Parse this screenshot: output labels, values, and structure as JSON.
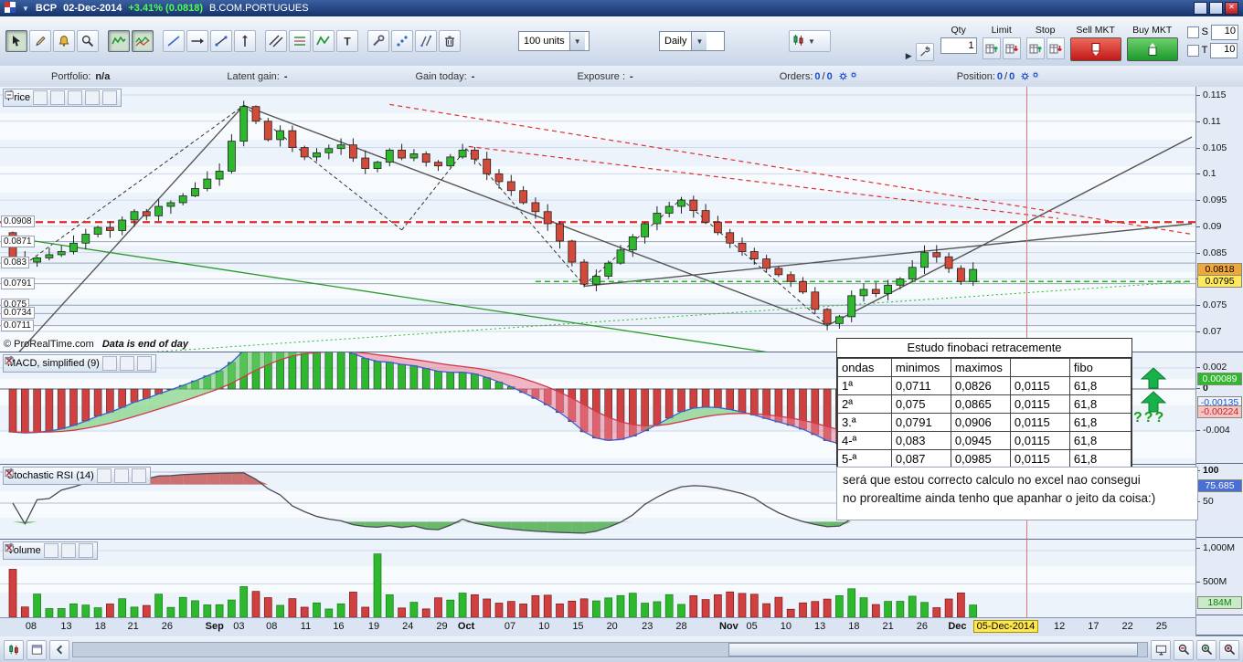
{
  "titlebar": {
    "symbol": "BCP",
    "date": "02-Dec-2014",
    "change": "+3.41% (0.0818)",
    "instrument": "B.COM.PORTUGUES"
  },
  "toolbar": {
    "tools": [
      {
        "name": "pointer-tool",
        "icon": "pointer",
        "selected": true
      },
      {
        "name": "pencil-tool",
        "icon": "pencil",
        "selected": false
      },
      {
        "name": "alarm-tool",
        "icon": "bell",
        "selected": false
      },
      {
        "name": "zoom-tool",
        "icon": "magnifier",
        "selected": false
      },
      {
        "name": "chart-mode-line",
        "icon": "wave",
        "selected": true
      },
      {
        "name": "chart-mode-compare",
        "icon": "wave2",
        "selected": true
      },
      {
        "name": "trend-line-tool",
        "icon": "diagline",
        "selected": false
      },
      {
        "name": "horizontal-ray-tool",
        "icon": "hline",
        "selected": false
      },
      {
        "name": "segment-tool",
        "icon": "segment",
        "selected": false
      },
      {
        "name": "vertical-line-tool",
        "icon": "vline",
        "selected": false
      },
      {
        "name": "channel-tool",
        "icon": "channel",
        "selected": false
      },
      {
        "name": "fibonacci-tool",
        "icon": "fib",
        "selected": false
      },
      {
        "name": "zigzag-tool",
        "icon": "zigzag",
        "selected": false
      },
      {
        "name": "text-tool",
        "icon": "textT",
        "selected": false
      },
      {
        "name": "drawing-settings-tool",
        "icon": "tools",
        "selected": false
      },
      {
        "name": "link-points-tool",
        "icon": "dots",
        "selected": false
      },
      {
        "name": "parallel-lines-tool",
        "icon": "slashes",
        "selected": false
      },
      {
        "name": "delete-drawing-tool",
        "icon": "trash",
        "selected": false
      }
    ],
    "units_value": "100 units",
    "timeframe_value": "Daily",
    "trade": {
      "qty_label": "Qty",
      "qty_value": "1",
      "limit_label": "Limit",
      "stop_label": "Stop",
      "sell_label": "Sell MKT",
      "buy_label": "Buy MKT",
      "s_label": "S",
      "s_value": "10",
      "t_label": "T",
      "t_value": "10"
    }
  },
  "infobar": {
    "portfolio_label": "Portfolio:",
    "portfolio_value": "n/a",
    "latent_label": "Latent gain:",
    "latent_value": "-",
    "gain_label": "Gain today:",
    "gain_value": "-",
    "exposure_label": "Exposure :",
    "exposure_value": "-",
    "orders_label": "Orders:",
    "orders_a": "0",
    "orders_sep": "/",
    "orders_b": "0",
    "position_label": "Position:",
    "position_a": "0",
    "position_sep": "/",
    "position_b": "0"
  },
  "panels": {
    "price": {
      "title": "Price",
      "copyright": "© ProRealTime.com",
      "note": "Data is end of day",
      "left_levels": [
        "0.0908",
        "0.0871",
        "0.083",
        "0.0791",
        "0.075",
        "0.0734",
        "0.0711"
      ],
      "right_ticks": [
        "0.115",
        "0.11",
        "0.105",
        "0.1",
        "0.095",
        "0.09",
        "0.085",
        "0.08",
        "0.075",
        "0.07"
      ],
      "badges": [
        {
          "label": "0.0818",
          "value": 0.0818,
          "bg": "#f0a73c",
          "fg": "#000"
        },
        {
          "label": "0.0795",
          "value": 0.0795,
          "bg": "#ffe95c",
          "fg": "#000"
        }
      ]
    },
    "macd": {
      "title": "MACD, simplified (9)",
      "ticks": [
        {
          "label": "0.002",
          "value": 0.002,
          "bold": false
        },
        {
          "label": "0",
          "value": 0,
          "bold": true
        },
        {
          "label": "-0.004",
          "value": -0.004,
          "bold": false
        }
      ],
      "badges": [
        {
          "label": "0.00089",
          "value": 0.00089,
          "bg": "#2eb82e",
          "fg": "#fff"
        },
        {
          "label": "-0.00135",
          "value": -0.00135,
          "bg": "#eef4ff",
          "fg": "#2255cc"
        },
        {
          "label": "-0.00224",
          "value": -0.00224,
          "bg": "#f6c4c4",
          "fg": "#c22222"
        }
      ]
    },
    "stoch": {
      "title": "Stochastic RSI (14)",
      "ticks": [
        {
          "label": "100",
          "value": 100,
          "bold": true
        },
        {
          "label": "50",
          "value": 50,
          "bold": false
        }
      ],
      "badges": [
        {
          "label": "75.685",
          "value": 75.685,
          "bg": "#4a6fd4",
          "fg": "#fff"
        }
      ]
    },
    "volume": {
      "title": "Volume",
      "ticks": [
        {
          "label": "1,000M",
          "value": 1000,
          "bold": false
        },
        {
          "label": "500M",
          "value": 500,
          "bold": false
        }
      ],
      "badges": [
        {
          "label": "184M",
          "value": 184,
          "bg": "#c6ebc6",
          "fg": "#157a15"
        }
      ]
    }
  },
  "fib_table": {
    "title": "Estudo finobaci retracemente",
    "headers": [
      "ondas",
      "minimos",
      "maximos",
      "",
      "fibo"
    ],
    "rows": [
      [
        "1ª",
        "0,0711",
        "0,0826",
        "0,0115",
        "61,8"
      ],
      [
        "2ª",
        "0,075",
        "0,0865",
        "0,0115",
        "61,8"
      ],
      [
        "3.ª",
        "0,0791",
        "0,0906",
        "0,0115",
        "61,8"
      ],
      [
        "4-ª",
        "0,083",
        "0,0945",
        "0,0115",
        "61,8"
      ],
      [
        "5-ª",
        "0,087",
        "0,0985",
        "0,0115",
        "61,8"
      ]
    ]
  },
  "annotation": {
    "line1": "será que estou correcto calculo no excel nao consegui",
    "line2": "no prorealtime ainda tenho que apanhar o jeito da coisa:)",
    "question": "???"
  },
  "xaxis": {
    "labels": [
      {
        "t": "08",
        "i": 1.5,
        "month": false
      },
      {
        "t": "13",
        "i": 4.4,
        "month": false
      },
      {
        "t": "18",
        "i": 7.2,
        "month": false
      },
      {
        "t": "21",
        "i": 9.9,
        "month": false
      },
      {
        "t": "26",
        "i": 12.7,
        "month": false
      },
      {
        "t": "Sep",
        "i": 16.6,
        "month": true
      },
      {
        "t": "03",
        "i": 18.6,
        "month": false
      },
      {
        "t": "08",
        "i": 21.3,
        "month": false
      },
      {
        "t": "11",
        "i": 24.1,
        "month": false
      },
      {
        "t": "16",
        "i": 26.8,
        "month": false
      },
      {
        "t": "19",
        "i": 29.7,
        "month": false
      },
      {
        "t": "24",
        "i": 32.5,
        "month": false
      },
      {
        "t": "29",
        "i": 35.3,
        "month": false
      },
      {
        "t": "Oct",
        "i": 37.3,
        "month": true
      },
      {
        "t": "07",
        "i": 40.9,
        "month": false
      },
      {
        "t": "10",
        "i": 43.7,
        "month": false
      },
      {
        "t": "15",
        "i": 46.5,
        "month": false
      },
      {
        "t": "20",
        "i": 49.3,
        "month": false
      },
      {
        "t": "23",
        "i": 52.2,
        "month": false
      },
      {
        "t": "28",
        "i": 55.0,
        "month": false
      },
      {
        "t": "Nov",
        "i": 58.9,
        "month": true
      },
      {
        "t": "05",
        "i": 60.8,
        "month": false
      },
      {
        "t": "10",
        "i": 63.6,
        "month": false
      },
      {
        "t": "13",
        "i": 66.4,
        "month": false
      },
      {
        "t": "18",
        "i": 69.2,
        "month": false
      },
      {
        "t": "21",
        "i": 72.0,
        "month": false
      },
      {
        "t": "26",
        "i": 74.8,
        "month": false
      },
      {
        "t": "Dec",
        "i": 77.7,
        "month": true
      },
      {
        "t": "12",
        "i": 86.1,
        "month": false
      },
      {
        "t": "17",
        "i": 88.9,
        "month": false
      },
      {
        "t": "22",
        "i": 91.7,
        "month": false
      },
      {
        "t": "25",
        "i": 94.5,
        "month": false
      }
    ],
    "cursor_date": "05-Dec-2014",
    "cursor_i": 81.7
  },
  "chart_data": {
    "type": "candlestick",
    "symbol": "BCP",
    "timeframe": "Daily",
    "ylim": [
      0.0662,
      0.115
    ],
    "y_ticks": [
      0.115,
      0.11,
      0.105,
      0.1,
      0.095,
      0.09,
      0.085,
      0.08,
      0.075,
      0.07
    ],
    "open_first": 0.0888,
    "closes": [
      0.0838,
      0.0832,
      0.084,
      0.0846,
      0.0852,
      0.0868,
      0.0885,
      0.0898,
      0.0892,
      0.0912,
      0.0928,
      0.092,
      0.0938,
      0.0945,
      0.0958,
      0.0972,
      0.099,
      0.1005,
      0.1062,
      0.1128,
      0.11,
      0.1065,
      0.1082,
      0.105,
      0.1032,
      0.104,
      0.1048,
      0.1055,
      0.103,
      0.101,
      0.1022,
      0.1045,
      0.103,
      0.1038,
      0.1022,
      0.1015,
      0.1032,
      0.1045,
      0.1028,
      0.1,
      0.0985,
      0.0968,
      0.0945,
      0.0928,
      0.0905,
      0.0872,
      0.0832,
      0.079,
      0.0805,
      0.083,
      0.0855,
      0.088,
      0.0905,
      0.0925,
      0.0938,
      0.095,
      0.093,
      0.0908,
      0.0888,
      0.0868,
      0.0852,
      0.0838,
      0.082,
      0.0808,
      0.0795,
      0.0775,
      0.0742,
      0.0715,
      0.0728,
      0.0768,
      0.078,
      0.0772,
      0.0788,
      0.08,
      0.0822,
      0.085,
      0.0842,
      0.082,
      0.0795,
      0.0818
    ],
    "last_close": 0.0818,
    "levels": [
      0.0871,
      0.083,
      0.0791,
      0.075,
      0.0734,
      0.0711
    ],
    "volume_overrides": {
      "0": 720,
      "30": 950,
      "79": 184
    },
    "crosshair_i": 83.4,
    "drawings": [
      {
        "kind": "trend",
        "style": "solid",
        "pts": [
          [
            -0.5,
            0.0635
          ],
          [
            19,
            0.113
          ]
        ]
      },
      {
        "kind": "trend",
        "style": "solid",
        "pts": [
          [
            19,
            0.113
          ],
          [
            67,
            0.0711
          ]
        ]
      },
      {
        "kind": "trend",
        "style": "solid",
        "pts": [
          [
            67,
            0.0711
          ],
          [
            97,
            0.107
          ]
        ]
      },
      {
        "kind": "trend",
        "style": "solid",
        "pts": [
          [
            47,
            0.0786
          ],
          [
            97,
            0.0905
          ]
        ]
      },
      {
        "kind": "trend",
        "style": "dashed",
        "pts": [
          [
            1,
            0.0828
          ],
          [
            19,
            0.113
          ]
        ]
      },
      {
        "kind": "trend",
        "style": "dashed",
        "pts": [
          [
            19,
            0.113
          ],
          [
            32,
            0.0893
          ]
        ]
      },
      {
        "kind": "trend",
        "style": "dashed",
        "pts": [
          [
            32,
            0.0893
          ],
          [
            37.3,
            0.1048
          ]
        ]
      },
      {
        "kind": "trend",
        "style": "dashed",
        "pts": [
          [
            37.3,
            0.1048
          ],
          [
            47,
            0.0788
          ]
        ]
      },
      {
        "kind": "trend",
        "style": "dashed",
        "pts": [
          [
            47,
            0.0788
          ],
          [
            55,
            0.0952
          ]
        ]
      },
      {
        "kind": "trend",
        "style": "dashed",
        "pts": [
          [
            55,
            0.0952
          ],
          [
            67,
            0.0712
          ]
        ]
      },
      {
        "kind": "trend",
        "style": "red-dashed",
        "pts": [
          [
            31,
            0.1132
          ],
          [
            97,
            0.0885
          ]
        ]
      },
      {
        "kind": "trend",
        "style": "red-dashed",
        "pts": [
          [
            37.5,
            0.1052
          ],
          [
            86,
            0.0915
          ]
        ]
      },
      {
        "kind": "trend",
        "style": "green-solid",
        "pts": [
          [
            -0.5,
            0.088
          ],
          [
            68.5,
            0.0638
          ]
        ]
      },
      {
        "kind": "trend",
        "style": "green-dotted",
        "pts": [
          [
            -0.5,
            0.0642
          ],
          [
            97,
            0.0795
          ]
        ]
      },
      {
        "kind": "hline",
        "style": "red-dashed-bold",
        "value": 0.0908
      },
      {
        "kind": "hline-seg",
        "style": "green-dashed",
        "value": 0.0795,
        "from": 43,
        "to": 97
      }
    ]
  }
}
